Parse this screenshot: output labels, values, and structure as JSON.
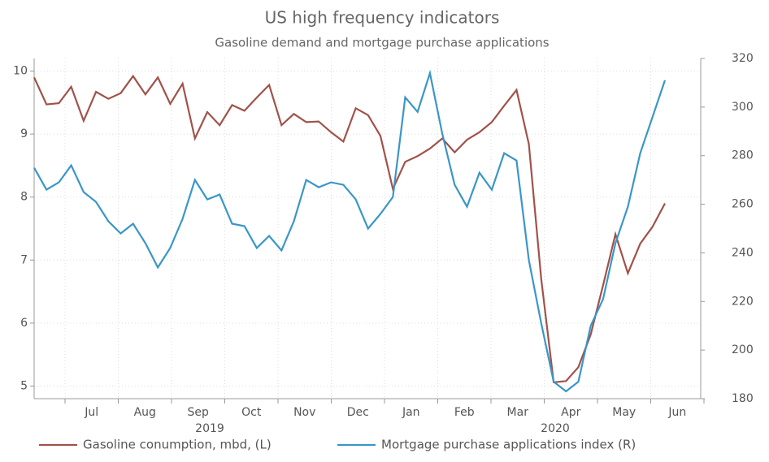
{
  "chart_data": {
    "type": "line",
    "title": "US high frequency indicators",
    "subtitle": "Gasoline demand and mortgage purchase applications",
    "xtick_labels": [
      "Jul",
      "Aug",
      "Sep",
      "Oct",
      "Nov",
      "Dec",
      "Jan",
      "Feb",
      "Mar",
      "Apr",
      "May",
      "Jun"
    ],
    "year_labels": [
      "2019",
      "2020"
    ],
    "ylim": [
      4.8,
      10.2
    ],
    "yticks": [
      5,
      6,
      7,
      8,
      9,
      10
    ],
    "y2lim": [
      180,
      320
    ],
    "y2ticks": [
      180,
      200,
      220,
      240,
      260,
      280,
      300,
      320
    ],
    "grid": true,
    "legend": "bottom",
    "series": [
      {
        "name": "Gasoline conumption, mbd, (L)",
        "color": "#a0524a",
        "values": [
          9.9,
          9.47,
          9.49,
          9.75,
          9.21,
          9.67,
          9.56,
          9.65,
          9.92,
          9.63,
          9.9,
          9.48,
          9.8,
          8.93,
          9.35,
          9.14,
          9.46,
          9.37,
          9.58,
          9.78,
          9.14,
          9.32,
          9.19,
          9.2,
          9.03,
          8.88,
          9.41,
          9.3,
          8.97,
          8.13,
          8.56,
          8.65,
          8.77,
          8.93,
          8.71,
          8.91,
          9.03,
          9.19,
          9.45,
          9.7,
          8.84,
          6.7,
          5.06,
          5.08,
          5.3,
          5.82,
          6.6,
          7.41,
          6.79,
          7.26,
          7.53,
          7.9
        ]
      },
      {
        "name": "Mortgage purchase applications index (R)",
        "color": "#3a96c8",
        "axis": "y2",
        "values": [
          275,
          266,
          269,
          276,
          265,
          261,
          253,
          248,
          252,
          244,
          234,
          242,
          254,
          270,
          262,
          264,
          252,
          251,
          242,
          247,
          241,
          253,
          270,
          267,
          269,
          268,
          262,
          250,
          256,
          263,
          304,
          298,
          314,
          289,
          268,
          259,
          273,
          266,
          281,
          278,
          237,
          211,
          187,
          183,
          187,
          210,
          221,
          244,
          259,
          281,
          296,
          311
        ]
      }
    ]
  }
}
